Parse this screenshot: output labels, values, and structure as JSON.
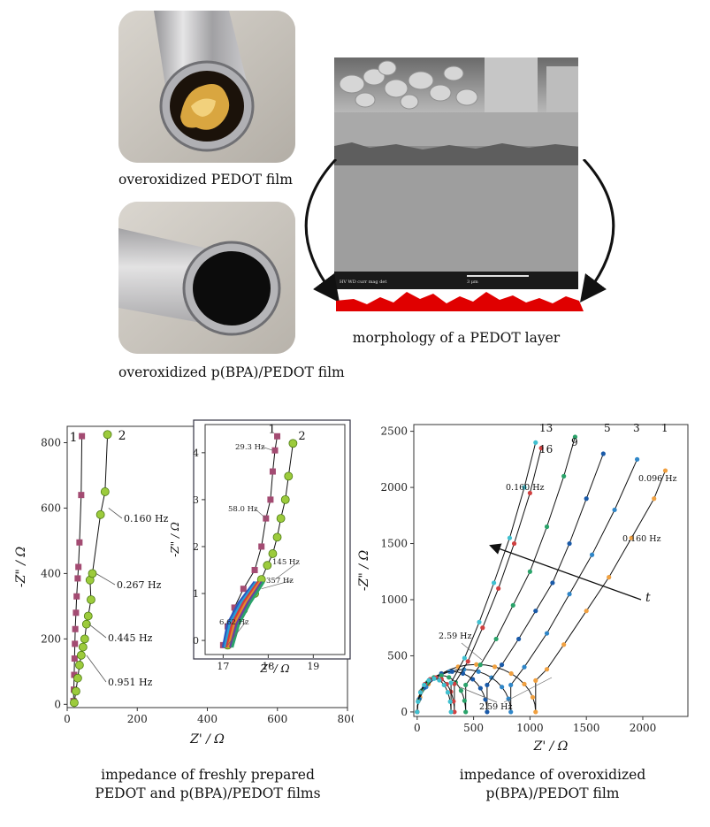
{
  "captions": {
    "photo1": "overoxidized PEDOT film",
    "photo2": "overoxidized p(BPA)/PEDOT film",
    "sem": "morphology of a PEDOT layer",
    "chart1_line1": "impedance of freshly prepared",
    "chart1_line2": "PEDOT and p(BPA)/PEDOT films",
    "chart2_line1": "impedance of overoxidized",
    "chart2_line2": "p(BPA)/PEDOT film"
  },
  "colors": {
    "accent": "#e00000",
    "series1": "#a34b72",
    "series2": "#9ccb3c",
    "curve": "#111111"
  },
  "chart_data": [
    {
      "type": "scatter",
      "xlabel": "Z' / Ω",
      "ylabel": "-Z\" / Ω",
      "xlim": [
        0,
        800
      ],
      "ylim": [
        -10,
        850
      ],
      "x_ticks": [
        "0",
        "200",
        "400",
        "600",
        "800"
      ],
      "y_ticks": [
        "0",
        "200",
        "400",
        "600",
        "800"
      ],
      "series": [
        {
          "name": "1",
          "points": [
            [
              18,
              10
            ],
            [
              19,
              45
            ],
            [
              20,
              90
            ],
            [
              21,
              140
            ],
            [
              22,
              185
            ],
            [
              23,
              230
            ],
            [
              25,
              280
            ],
            [
              27,
              330
            ],
            [
              30,
              385
            ],
            [
              32,
              420
            ],
            [
              35,
              495
            ],
            [
              40,
              640
            ],
            [
              42,
              820
            ]
          ]
        },
        {
          "name": "2",
          "points": [
            [
              20,
              5
            ],
            [
              25,
              40
            ],
            [
              30,
              80
            ],
            [
              35,
              120
            ],
            [
              40,
              150
            ],
            [
              45,
              175
            ],
            [
              50,
              200
            ],
            [
              55,
              245
            ],
            [
              60,
              270
            ],
            [
              68,
              320
            ],
            [
              65,
              380
            ],
            [
              72,
              400
            ],
            [
              95,
              580
            ],
            [
              108,
              650
            ],
            [
              115,
              825
            ]
          ]
        }
      ],
      "annotations": [
        "0.160 Hz",
        "0.267 Hz",
        "0.445 Hz",
        "0.951 Hz"
      ],
      "inset": {
        "xlabel": "Z' / Ω",
        "ylabel": "-Z\" / Ω",
        "xlim": [
          16.6,
          19.7
        ],
        "ylim": [
          -0.3,
          4.6
        ],
        "x_ticks": [
          "17",
          "18",
          "19"
        ],
        "y_ticks": [
          "0",
          "1",
          "2",
          "3",
          "4"
        ],
        "series": [
          {
            "name": "1",
            "points": [
              [
                17.0,
                -0.1
              ],
              [
                17.1,
                0.3
              ],
              [
                17.25,
                0.7
              ],
              [
                17.45,
                1.1
              ],
              [
                17.7,
                1.5
              ],
              [
                17.85,
                2.0
              ],
              [
                17.95,
                2.6
              ],
              [
                18.05,
                3.0
              ],
              [
                18.1,
                3.6
              ],
              [
                18.15,
                4.05
              ],
              [
                18.2,
                4.35
              ]
            ]
          },
          {
            "name": "2",
            "points": [
              [
                17.1,
                -0.1
              ],
              [
                17.25,
                0.3
              ],
              [
                17.45,
                0.65
              ],
              [
                17.7,
                1.0
              ],
              [
                17.85,
                1.3
              ],
              [
                17.98,
                1.6
              ],
              [
                18.1,
                1.85
              ],
              [
                18.2,
                2.2
              ],
              [
                18.28,
                2.6
              ],
              [
                18.38,
                3.0
              ],
              [
                18.45,
                3.5
              ],
              [
                18.55,
                4.2
              ]
            ]
          }
        ],
        "annotations": [
          "29.3 Hz",
          "58.0 Hz",
          "145 Hz",
          "357 Hz",
          "6.62 Hz"
        ]
      }
    },
    {
      "type": "scatter",
      "xlabel": "Z' / Ω",
      "ylabel": "-Z\" / Ω",
      "xlim": [
        -30,
        2400
      ],
      "ylim": [
        -40,
        2560
      ],
      "x_ticks": [
        "0",
        "500",
        "1000",
        "1500",
        "2000"
      ],
      "y_ticks": [
        "0",
        "500",
        "1000",
        "1500",
        "2000",
        "2500"
      ],
      "curve_labels": [
        "13",
        "16",
        "9",
        "5",
        "3",
        "1"
      ],
      "series": [
        {
          "name": "1",
          "color": "#f0a040",
          "points": [
            [
              1050,
              280
            ],
            [
              1150,
              380
            ],
            [
              1300,
              600
            ],
            [
              1500,
              900
            ],
            [
              1700,
              1200
            ],
            [
              1900,
              1550
            ],
            [
              2100,
              1900
            ],
            [
              2200,
              2150
            ]
          ]
        },
        {
          "name": "3",
          "color": "#2f86c8",
          "points": [
            [
              830,
              240
            ],
            [
              950,
              400
            ],
            [
              1150,
              700
            ],
            [
              1350,
              1050
            ],
            [
              1550,
              1400
            ],
            [
              1750,
              1800
            ],
            [
              1950,
              2250
            ]
          ]
        },
        {
          "name": "5",
          "color": "#1a5aa8",
          "points": [
            [
              620,
              240
            ],
            [
              750,
              420
            ],
            [
              900,
              650
            ],
            [
              1050,
              900
            ],
            [
              1200,
              1150
            ],
            [
              1350,
              1500
            ],
            [
              1500,
              1900
            ],
            [
              1650,
              2300
            ]
          ]
        },
        {
          "name": "9",
          "color": "#2aa36a",
          "points": [
            [
              430,
              240
            ],
            [
              560,
              420
            ],
            [
              700,
              650
            ],
            [
              850,
              950
            ],
            [
              1000,
              1250
            ],
            [
              1150,
              1650
            ],
            [
              1300,
              2100
            ],
            [
              1400,
              2450
            ]
          ]
        },
        {
          "name": "16",
          "color": "#d04040",
          "points": [
            [
              330,
              250
            ],
            [
              450,
              450
            ],
            [
              580,
              750
            ],
            [
              720,
              1100
            ],
            [
              860,
              1500
            ],
            [
              1000,
              1950
            ],
            [
              1100,
              2350
            ]
          ]
        },
        {
          "name": "13",
          "color": "#40c0d0",
          "points": [
            [
              300,
              260
            ],
            [
              420,
              480
            ],
            [
              550,
              800
            ],
            [
              680,
              1150
            ],
            [
              820,
              1550
            ],
            [
              950,
              2000
            ],
            [
              1050,
              2400
            ]
          ]
        }
      ],
      "annotations": [
        "0.160 Hz",
        "0.096 Hz",
        "0.160 Hz",
        "2.59 Hz",
        "2.59 Hz",
        "t"
      ]
    }
  ]
}
